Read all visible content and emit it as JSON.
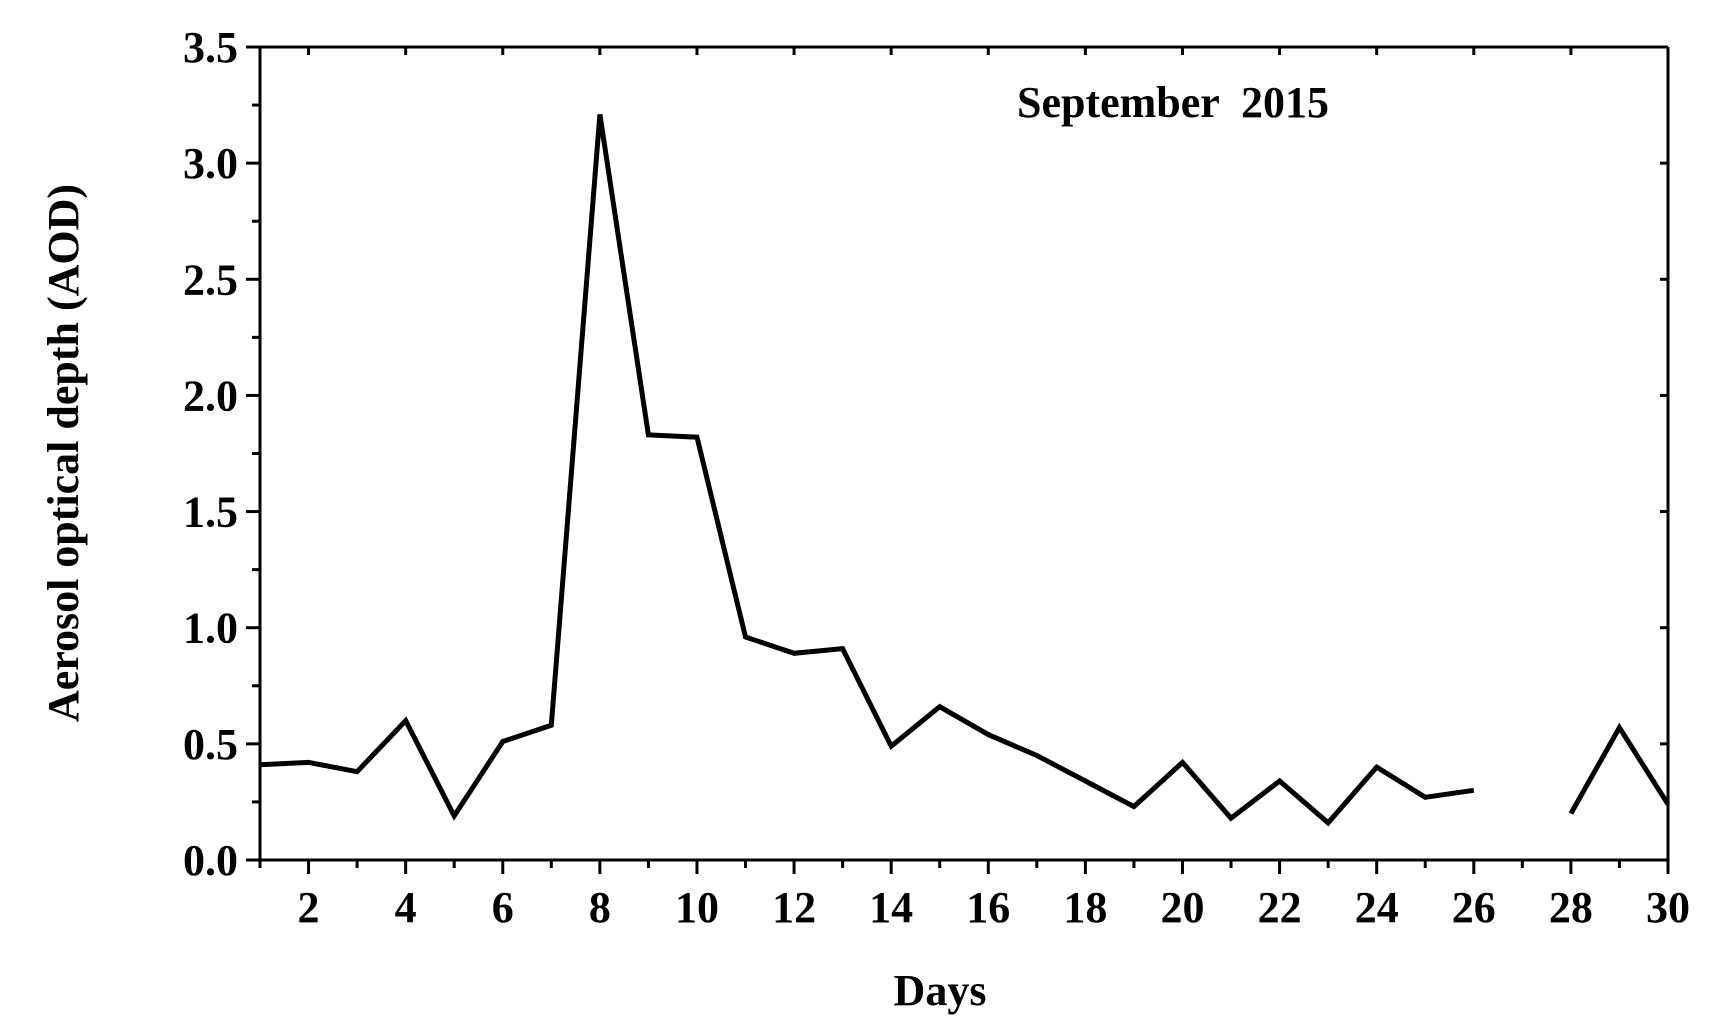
{
  "chart_data": {
    "type": "line",
    "title": "",
    "annotation": "September  2015",
    "xlabel": "Days",
    "ylabel": "Aerosol optical depth (AOD)",
    "xlim": [
      1,
      30
    ],
    "ylim": [
      0,
      3.5
    ],
    "xticks": [
      2,
      4,
      6,
      8,
      10,
      12,
      14,
      16,
      18,
      20,
      22,
      24,
      26,
      28,
      30
    ],
    "yticks": [
      0.0,
      0.5,
      1.0,
      1.5,
      2.0,
      2.5,
      3.0,
      3.5
    ],
    "ytick_labels": [
      "0.0",
      "0.5",
      "1.0",
      "1.5",
      "2.0",
      "2.5",
      "3.0",
      "3.5"
    ],
    "grid": false,
    "series": [
      {
        "x": [
          1,
          2,
          3,
          4,
          5,
          6,
          7,
          8,
          9,
          10,
          11,
          12,
          13,
          14,
          15,
          16,
          17,
          18,
          19,
          20,
          21,
          22,
          23,
          24,
          25,
          26,
          27,
          28,
          29,
          30
        ],
        "y": [
          0.41,
          0.42,
          0.38,
          0.6,
          0.19,
          0.51,
          0.58,
          3.21,
          1.83,
          1.82,
          0.96,
          0.89,
          0.91,
          0.49,
          0.66,
          0.54,
          0.45,
          0.34,
          0.23,
          0.42,
          0.18,
          0.34,
          0.16,
          0.4,
          0.27,
          0.3,
          null,
          0.2,
          0.57,
          0.24
        ]
      }
    ]
  }
}
